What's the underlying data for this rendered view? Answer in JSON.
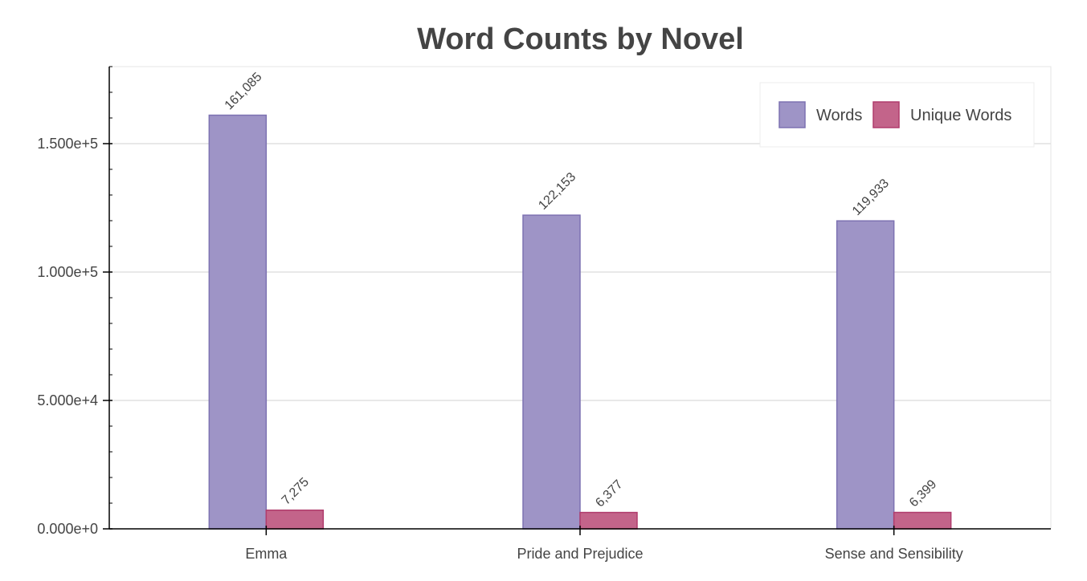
{
  "chart_data": {
    "type": "bar",
    "title": "Word Counts by Novel",
    "xlabel": "",
    "ylabel": "",
    "categories": [
      "Emma",
      "Pride and Prejudice",
      "Sense and Sensibility"
    ],
    "series": [
      {
        "name": "Words",
        "values": [
          161085,
          122153,
          119933
        ],
        "value_labels": [
          "161,085",
          "122,153",
          "119,933"
        ],
        "fill": "#9e94c6",
        "stroke": "#7d72b2"
      },
      {
        "name": "Unique Words",
        "values": [
          7275,
          6377,
          6399
        ],
        "value_labels": [
          "7,275",
          "6,377",
          "6,399"
        ],
        "fill": "#c3648a",
        "stroke": "#b03c6c"
      }
    ],
    "ylim": [
      0,
      180000
    ],
    "yticks": [
      0,
      50000,
      100000,
      150000
    ],
    "ytick_labels": [
      "0.000e+0",
      "5.000e+4",
      "1.000e+5",
      "1.500e+5"
    ],
    "grid": true,
    "legend": "top-right"
  }
}
